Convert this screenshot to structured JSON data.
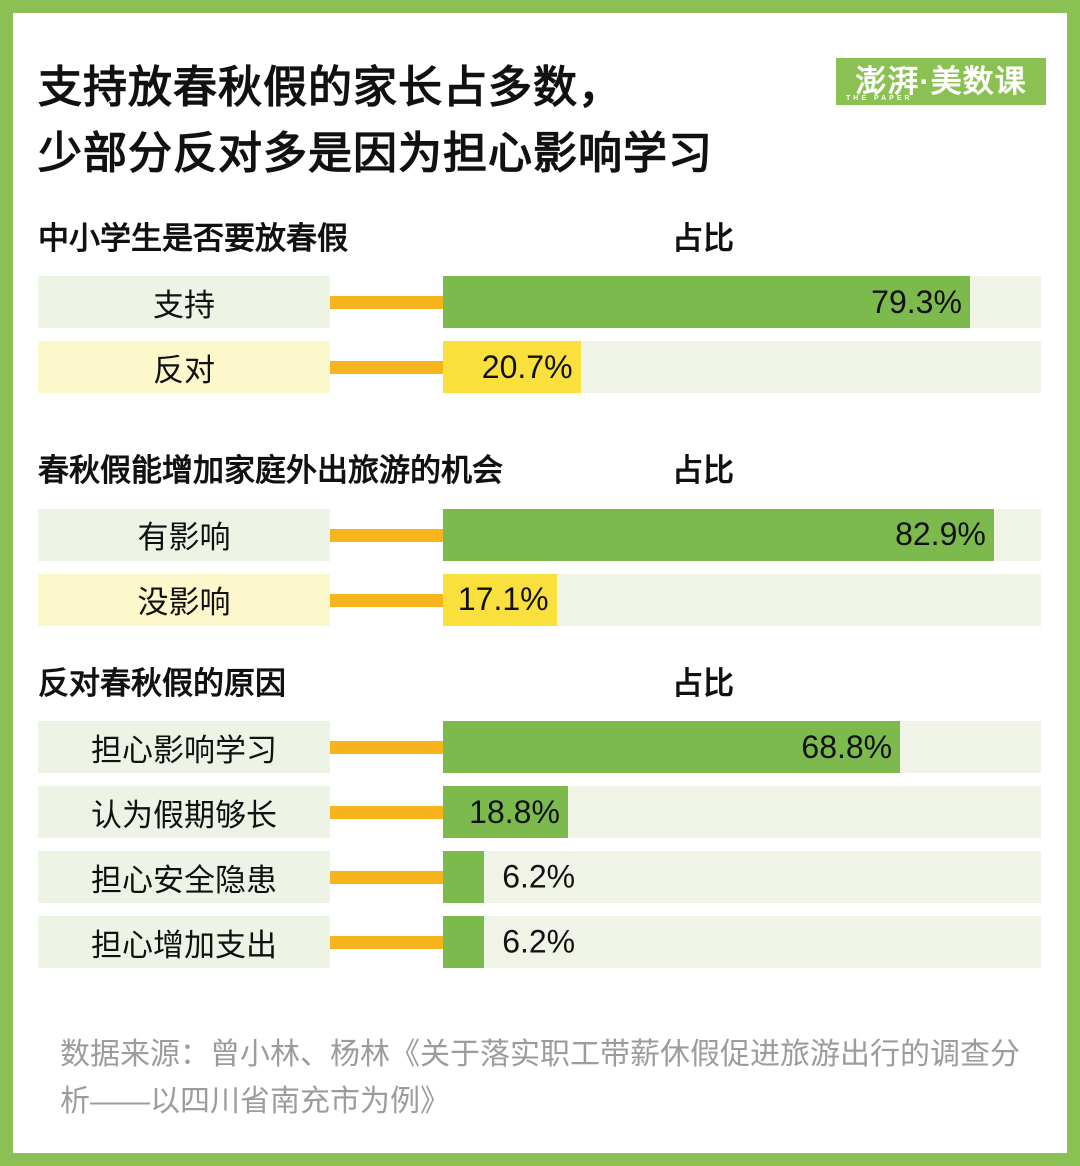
{
  "page": {
    "title_lines": [
      "支持放春秋假的家长占多数，",
      "少部分反对多是因为担心影响学习"
    ],
    "logo": {
      "text": "澎湃·美数课",
      "subtext": "THE PAPER"
    },
    "source_lines": [
      "数据来源：曾小林、杨林《关于落实职工带薪休假促进旅游出行的调查分",
      "析——以四川省南充市为例》"
    ]
  },
  "colors": {
    "border_green": "#8BC152",
    "bar_green": "#7CBA4E",
    "bar_yellow": "#FAE03C",
    "track_light_green": "#EFF4E7",
    "label_box_light_green": "#EDF4E5",
    "label_box_light_yellow": "#FCF8CC",
    "connector_orange": "#F8B41D",
    "source_gray": "#9C9C9C"
  },
  "chart_data": [
    {
      "type": "bar",
      "orientation": "horizontal",
      "title": "中小学生是否要放春假",
      "value_header": "占比",
      "categories": [
        "支持",
        "反对"
      ],
      "values": [
        79.3,
        20.7
      ],
      "value_labels": [
        "79.3%",
        "20.7%"
      ],
      "bar_colors": [
        "#7CBA4E",
        "#FAE03C"
      ],
      "label_positions": [
        "inside",
        "inside"
      ],
      "xlim": [
        0,
        90
      ],
      "grid": false,
      "legend": "none"
    },
    {
      "type": "bar",
      "orientation": "horizontal",
      "title": "春秋假能增加家庭外出旅游的机会",
      "value_header": "占比",
      "categories": [
        "有影响",
        "没影响"
      ],
      "values": [
        82.9,
        17.1
      ],
      "value_labels": [
        "82.9%",
        "17.1%"
      ],
      "bar_colors": [
        "#7CBA4E",
        "#FAE03C"
      ],
      "label_positions": [
        "inside",
        "inside"
      ],
      "xlim": [
        0,
        90
      ],
      "grid": false,
      "legend": "none"
    },
    {
      "type": "bar",
      "orientation": "horizontal",
      "title": "反对春秋假的原因",
      "value_header": "占比",
      "categories": [
        "担心影响学习",
        "认为假期够长",
        "担心安全隐患",
        "担心增加支出"
      ],
      "values": [
        68.8,
        18.8,
        6.2,
        6.2
      ],
      "value_labels": [
        "68.8%",
        "18.8%",
        "6.2%",
        "6.2%"
      ],
      "bar_colors": [
        "#7CBA4E",
        "#7CBA4E",
        "#7CBA4E",
        "#7CBA4E"
      ],
      "label_positions": [
        "inside",
        "inside",
        "outside",
        "outside"
      ],
      "xlim": [
        0,
        90
      ],
      "grid": false,
      "legend": "none"
    }
  ]
}
